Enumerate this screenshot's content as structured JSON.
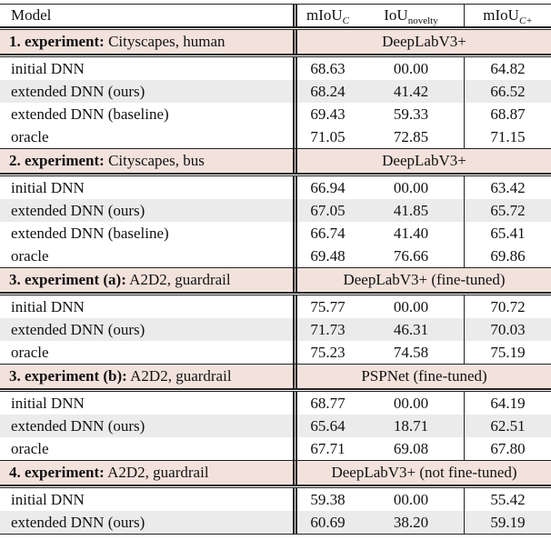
{
  "header": {
    "model": "Model",
    "col1": {
      "base": "mIoU",
      "sub": "C"
    },
    "col2": {
      "base": "IoU",
      "sub": "novelty"
    },
    "col3": {
      "base": "mIoU",
      "sub": "C+"
    }
  },
  "sections": [
    {
      "label_bold": "1. experiment:",
      "label_rest": " Cityscapes, human",
      "model": "DeepLabV3+",
      "rows": [
        {
          "name": "initial DNN",
          "v1": "68.63",
          "v2": "00.00",
          "v3": "64.82"
        },
        {
          "name": "extended DNN (ours)",
          "v1": "68.24",
          "v2": "41.42",
          "v3": "66.52"
        },
        {
          "name": "extended DNN (baseline)",
          "v1": "69.43",
          "v2": "59.33",
          "v3": "68.87"
        },
        {
          "name": "oracle",
          "v1": "71.05",
          "v2": "72.85",
          "v3": "71.15"
        }
      ]
    },
    {
      "label_bold": "2. experiment:",
      "label_rest": " Cityscapes, bus",
      "model": "DeepLabV3+",
      "rows": [
        {
          "name": "initial DNN",
          "v1": "66.94",
          "v2": "00.00",
          "v3": "63.42"
        },
        {
          "name": "extended DNN (ours)",
          "v1": "67.05",
          "v2": "41.85",
          "v3": "65.72"
        },
        {
          "name": "extended DNN (baseline)",
          "v1": "66.74",
          "v2": "41.40",
          "v3": "65.41"
        },
        {
          "name": "oracle",
          "v1": "69.48",
          "v2": "76.66",
          "v3": "69.86"
        }
      ]
    },
    {
      "label_bold": "3. experiment (a):",
      "label_rest": " A2D2, guardrail",
      "model": "DeepLabV3+ (fine-tuned)",
      "rows": [
        {
          "name": "initial DNN",
          "v1": "75.77",
          "v2": "00.00",
          "v3": "70.72"
        },
        {
          "name": "extended DNN (ours)",
          "v1": "71.73",
          "v2": "46.31",
          "v3": "70.03"
        },
        {
          "name": "oracle",
          "v1": "75.23",
          "v2": "74.58",
          "v3": "75.19"
        }
      ]
    },
    {
      "label_bold": "3. experiment (b):",
      "label_rest": " A2D2, guardrail",
      "model": "PSPNet (fine-tuned)",
      "rows": [
        {
          "name": "initial DNN",
          "v1": "68.77",
          "v2": "00.00",
          "v3": "64.19"
        },
        {
          "name": "extended DNN (ours)",
          "v1": "65.64",
          "v2": "18.71",
          "v3": "62.51"
        },
        {
          "name": "oracle",
          "v1": "67.71",
          "v2": "69.08",
          "v3": "67.80"
        }
      ]
    },
    {
      "label_bold": "4. experiment:",
      "label_rest": " A2D2, guardrail",
      "model": "DeepLabV3+ (not fine-tuned)",
      "rows": [
        {
          "name": "initial DNN",
          "v1": "59.38",
          "v2": "00.00",
          "v3": "55.42"
        },
        {
          "name": "extended DNN (ours)",
          "v1": "60.69",
          "v2": "38.20",
          "v3": "59.19"
        }
      ]
    }
  ],
  "colors": {
    "section_bg": "#f3e2dc",
    "stripe_bg": "#ebebeb"
  }
}
